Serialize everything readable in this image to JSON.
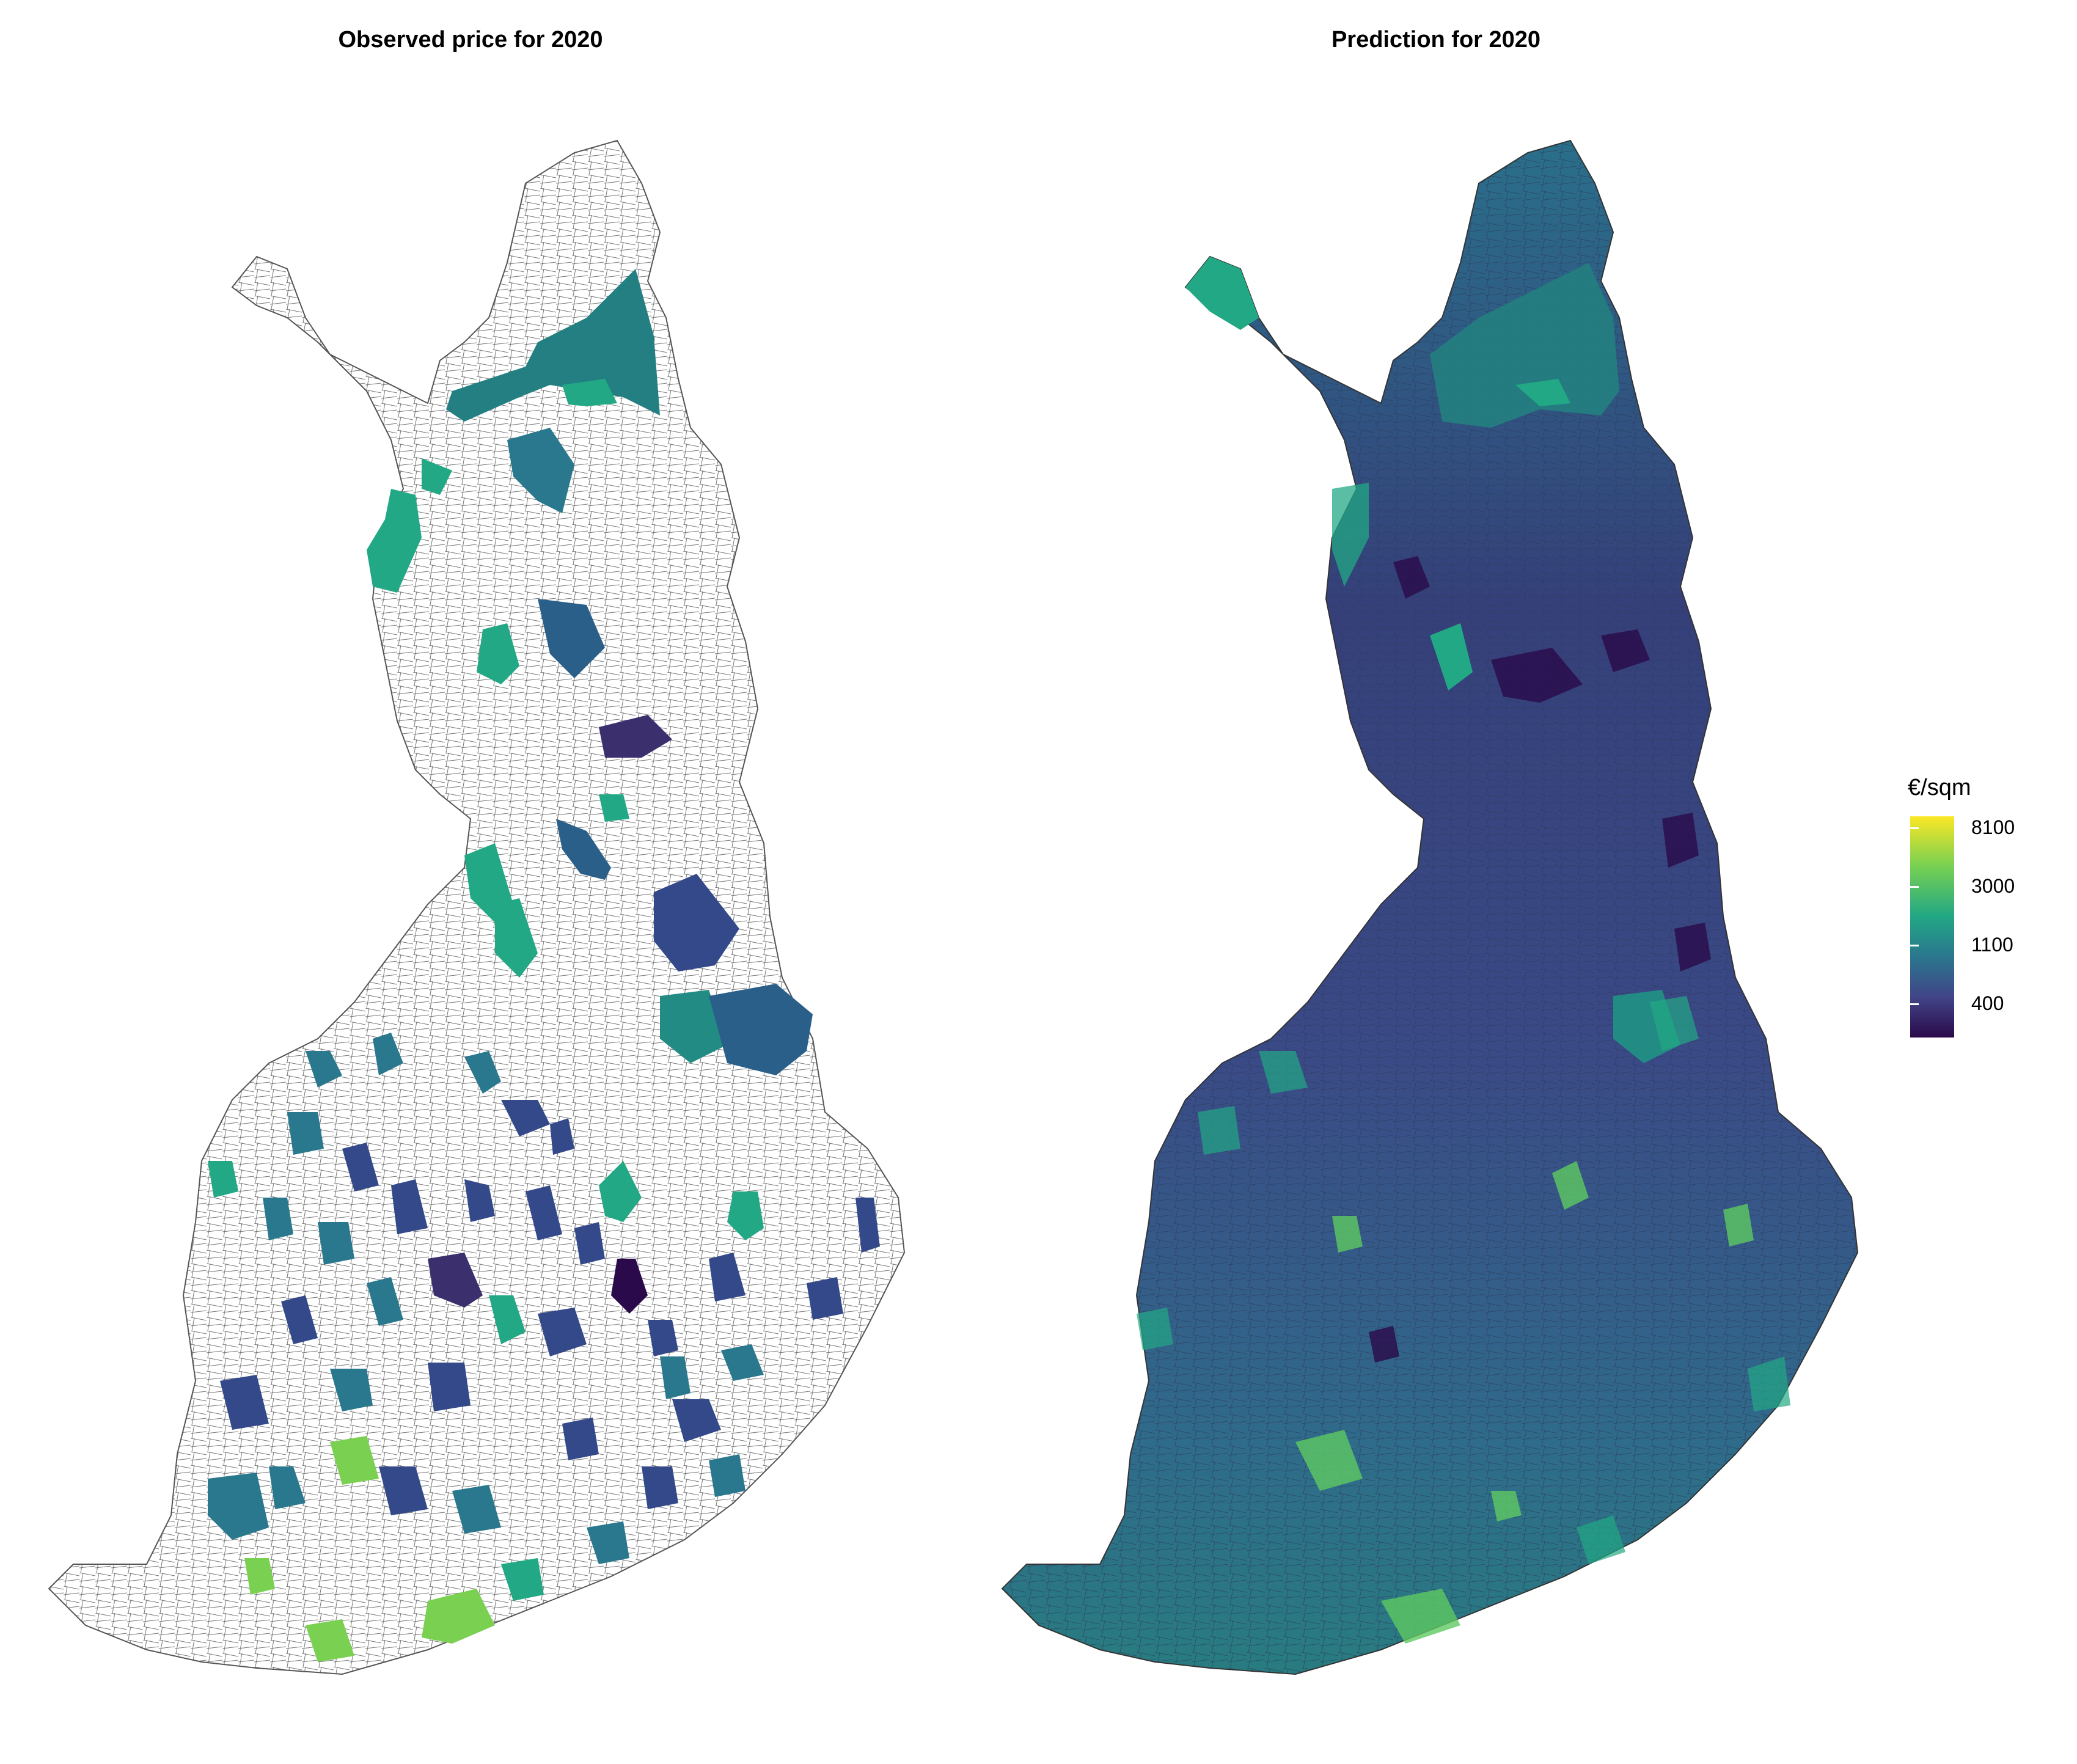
{
  "panels": {
    "left_title": "Observed price for 2020",
    "right_title": "Prediction for 2020"
  },
  "legend": {
    "title": "€/sqm",
    "ticks": [
      "8100",
      "3000",
      "1100",
      "400"
    ]
  },
  "colors": {
    "empty": "#ffffff",
    "border": "#555555",
    "viridis": [
      "#2a0a4a",
      "#3b2f6e",
      "#414487",
      "#2a788e",
      "#22a884",
      "#7ad151",
      "#fde725"
    ]
  }
}
